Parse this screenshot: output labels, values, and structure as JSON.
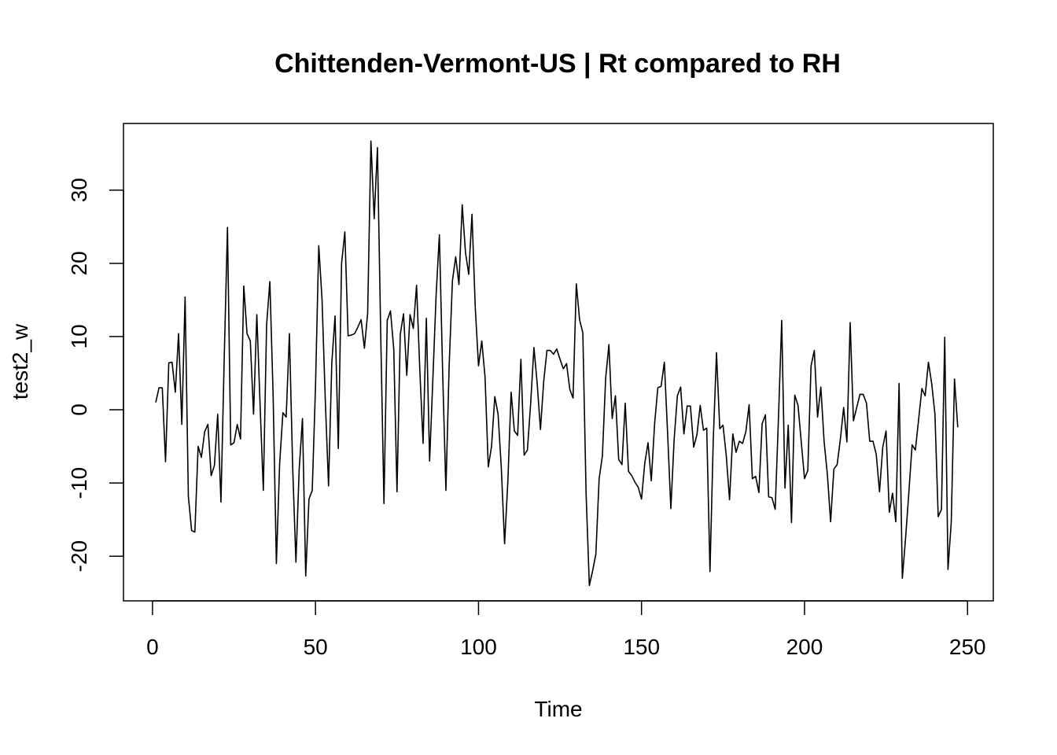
{
  "chart_data": {
    "type": "line",
    "title": "Chittenden-Vermont-US | Rt compared to RH",
    "xlabel": "Time",
    "ylabel": "test2_w",
    "xlim": [
      -8.9,
      257.9
    ],
    "ylim": [
      -26.1,
      39.1
    ],
    "x_ticks": [
      0,
      50,
      100,
      150,
      200,
      250
    ],
    "y_ticks": [
      -20,
      -10,
      0,
      10,
      20,
      30
    ],
    "grid": false,
    "legend": "none",
    "series": [
      {
        "color": "#000000",
        "x_start": 1,
        "values": [
          1,
          3,
          3,
          -7.1,
          6.4,
          6.5,
          2.4,
          10.4,
          -2,
          15.4,
          -11.8,
          -16.5,
          -16.7,
          -5,
          -6.5,
          -3,
          -2,
          -9,
          -7.6,
          -0.6,
          -12.6,
          7,
          24.9,
          -4.8,
          -4.5,
          -2,
          -4,
          16.9,
          10.4,
          9.4,
          -0.6,
          13,
          0.7,
          -11,
          11.6,
          17.5,
          2,
          -21,
          -7.4,
          -0.4,
          -1,
          10.4,
          -7.9,
          -20.8,
          -8.1,
          -1.2,
          -22.7,
          -12.2,
          -11,
          3.2,
          22.4,
          15.1,
          1.4,
          -10.4,
          6.4,
          12.8,
          -5.3,
          20,
          24.3,
          10.1,
          10.2,
          10.4,
          11.3,
          12.3,
          8.4,
          13.2,
          36.7,
          26.1,
          35.8,
          10.5,
          -12.8,
          12.2,
          13.5,
          8.3,
          -11.2,
          10.3,
          13.1,
          4.7,
          13,
          11.1,
          17,
          5.4,
          -4.6,
          12.5,
          -7,
          4.2,
          15.7,
          23.9,
          5.1,
          -11,
          6.1,
          17.6,
          20.9,
          17.1,
          28,
          21.5,
          18.5,
          26.7,
          14,
          6,
          9.4,
          4.5,
          -7.8,
          -5,
          1.8,
          -0.6,
          -8,
          -18.3,
          -9.8,
          2.4,
          -2.9,
          -3.5,
          6.9,
          -6.2,
          -5.5,
          0.9,
          8.5,
          3.6,
          -2.7,
          3.9,
          8.1,
          8.1,
          7.6,
          8.3,
          6.9,
          5.6,
          6.3,
          2.8,
          1.6,
          17.2,
          12.3,
          10.5,
          -11.5,
          -24,
          -22,
          -19.7,
          -9.4,
          -6.3,
          4.3,
          8.9,
          -1.2,
          1.9,
          -6.8,
          -7.5,
          0.9,
          -8.4,
          -9,
          -9.9,
          -10.6,
          -12.2,
          -7.3,
          -4.5,
          -9.7,
          -2,
          3,
          3.2,
          6.5,
          -3.2,
          -13.5,
          -4.1,
          1.9,
          3.1,
          -3.3,
          0.5,
          0.5,
          -5.1,
          -3.4,
          0.6,
          -2.8,
          -2.5,
          -22.1,
          -4.2,
          7.8,
          -2.6,
          -2.1,
          -6.3,
          -12.3,
          -3.3,
          -5.8,
          -4.3,
          -4.6,
          -3,
          0.7,
          -9.4,
          -9.1,
          -11.3,
          -1.9,
          -0.7,
          -11.9,
          -12,
          -13.6,
          -1.2,
          12.2,
          -10.7,
          -2.1,
          -15.4,
          2,
          0.6,
          -4.4,
          -9.4,
          -8.3,
          6,
          8.1,
          -1,
          3.1,
          -4.3,
          -8.8,
          -15.3,
          -8.1,
          -7.5,
          -4,
          0.3,
          -4.4,
          11.9,
          -1.5,
          0.3,
          2.1,
          2.1,
          0.9,
          -4.3,
          -4.3,
          -6.1,
          -11.2,
          -5.1,
          -2.9,
          -14,
          -11.4,
          -15.3,
          3.6,
          -23,
          -17.5,
          -11.3,
          -4.8,
          -5.5,
          -1.3,
          2.9,
          1.9,
          6.5,
          3.6,
          -0.6,
          -14.6,
          -13.6,
          9.9,
          -21.8,
          -15.4,
          4.2,
          -2.4
        ]
      }
    ]
  }
}
